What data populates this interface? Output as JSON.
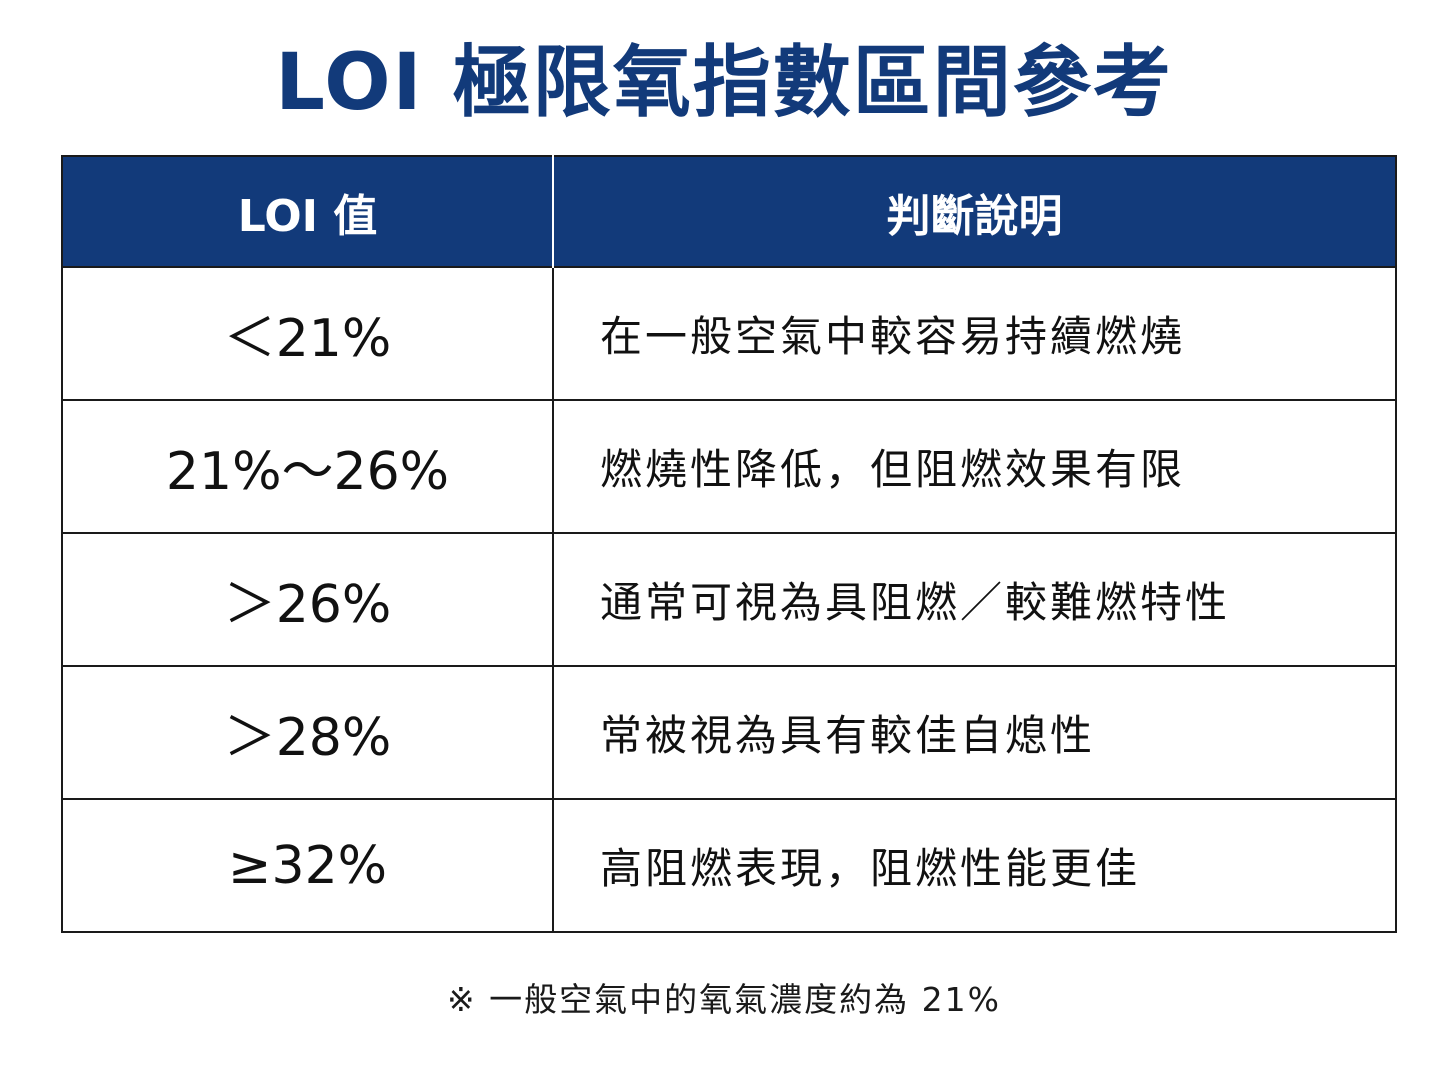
{
  "title": "LOI 極限氧指數區間參考",
  "table": {
    "headers": [
      "LOI 值",
      "判斷說明"
    ],
    "rows": [
      {
        "value": "＜21%",
        "description": "在一般空氣中較容易持續燃燒"
      },
      {
        "value": "21%～26%",
        "description": "燃燒性降低，但阻燃效果有限"
      },
      {
        "value": "＞26%",
        "description": "通常可視為具阻燃／較難燃特性"
      },
      {
        "value": "＞28%",
        "description": "常被視為具有較佳自熄性"
      },
      {
        "value": "≥32%",
        "description": "高阻燃表現，阻燃性能更佳"
      }
    ]
  },
  "footnote": "※ 一般空氣中的氧氣濃度約為 21%",
  "colors": {
    "accent": "#123a7a",
    "header_text": "#ffffff",
    "border": "#1a1a1a",
    "background": "#ffffff"
  }
}
